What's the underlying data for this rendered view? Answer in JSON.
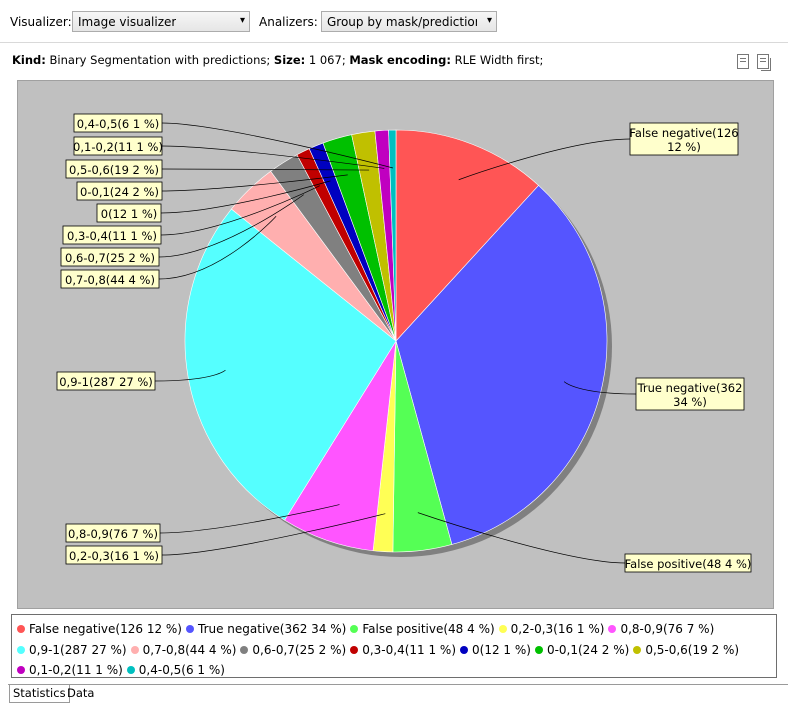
{
  "toolbar": {
    "visualizer_label": "Visualizer:",
    "visualizer_value": "Image visualizer",
    "analyzers_label": "Analizers:",
    "analyzers_value": "Group by mask/prediction id"
  },
  "info": {
    "kind_label": "Kind:",
    "kind_value": "Binary Segmentation with predictions;",
    "size_label": "Size:",
    "size_value": "1 067;",
    "encoding_label": "Mask encoding:",
    "encoding_value": "RLE Width first;"
  },
  "icons": {
    "export": "document-export-icon",
    "copy": "document-copy-icon"
  },
  "tabs": [
    {
      "label": "Statistics"
    },
    {
      "label": "Data"
    }
  ],
  "chart_data": {
    "type": "pie",
    "total": 1067,
    "slices": [
      {
        "label": "False negative(126 12 %)",
        "value": 126,
        "color": "#ff5555"
      },
      {
        "label": "True negative(362 34 %)",
        "value": 362,
        "color": "#5555ff"
      },
      {
        "label": "False positive(48 4 %)",
        "value": 48,
        "color": "#55ff55"
      },
      {
        "label": "0,2-0,3(16 1 %)",
        "value": 16,
        "color": "#ffff55"
      },
      {
        "label": "0,8-0,9(76 7 %)",
        "value": 76,
        "color": "#ff55ff"
      },
      {
        "label": "0,9-1(287 27 %)",
        "value": 287,
        "color": "#55ffff"
      },
      {
        "label": "0,7-0,8(44 4 %)",
        "value": 44,
        "color": "#ffafaf"
      },
      {
        "label": "0,6-0,7(25 2 %)",
        "value": 25,
        "color": "#808080"
      },
      {
        "label": "0,3-0,4(11 1 %)",
        "value": 11,
        "color": "#c00000"
      },
      {
        "label": "0(12 1 %)",
        "value": 12,
        "color": "#0000c0"
      },
      {
        "label": "0-0,1(24 2 %)",
        "value": 24,
        "color": "#00c000"
      },
      {
        "label": "0,5-0,6(19 2 %)",
        "value": 19,
        "color": "#c0c000"
      },
      {
        "label": "0,1-0,2(11 1 %)",
        "value": 11,
        "color": "#c000c0"
      },
      {
        "label": "0,4-0,5(6 1 %)",
        "value": 6,
        "color": "#00c0c0"
      }
    ],
    "legend_placement": "bottom"
  }
}
